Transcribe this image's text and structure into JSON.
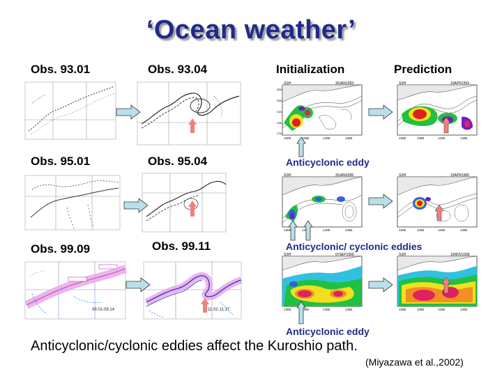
{
  "title": "‘Ocean weather’",
  "columns": {
    "initialization": "Initialization",
    "prediction": "Prediction"
  },
  "rows": [
    {
      "obs_a": "Obs. 93.01",
      "obs_b": "Obs. 93.04",
      "init_date": "30JAN1993",
      "pred_date": "10APR1993",
      "note": "Anticyclonic eddy"
    },
    {
      "obs_a": "Obs. 95.01",
      "obs_b": "Obs. 95.04",
      "init_date": "30JAN1995",
      "pred_date": "10APR1995",
      "note": "Anticyclonic/ cyclonic eddies"
    },
    {
      "obs_a": "Obs. 99.09",
      "obs_b": "Obs. 99.11",
      "init_date": "07SEP1999",
      "pred_date": "16NOV1999",
      "note": "Anticyclonic eddy",
      "obs_a_range": "09.01-09.14",
      "obs_b_range": "11.02-11.17"
    }
  ],
  "map_label": "SSH",
  "lon_ticks": [
    "130E",
    "135E",
    "140E",
    "145E"
  ],
  "lat_ticks": [
    "35N",
    "33N",
    "31N",
    "29N",
    "27N"
  ],
  "caption": "Anticyclonic/cyclonic eddies affect the Kuroshio path.",
  "citation": "(Miyazawa et al.,2002)",
  "colors": {
    "title": "#1f2a8a",
    "arrow_fill": "#b9e0ea",
    "eddy_arrow": "#f08080",
    "note_text": "#1f2a8a"
  }
}
